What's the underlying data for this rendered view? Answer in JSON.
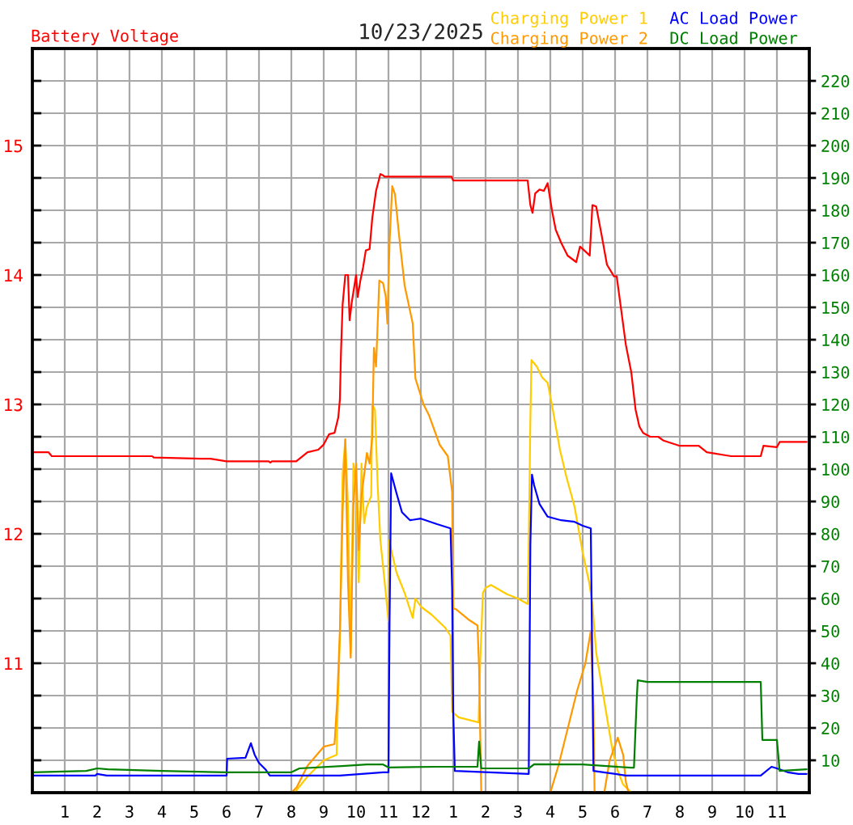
{
  "chart_data": {
    "type": "line",
    "title": "10/23/2025",
    "ylabel": "Battery Voltage",
    "xlim": [
      "2025-10-23T00:00",
      "2025-10-24T00:00"
    ],
    "xticks": [
      {
        "value": "2025-10-23T01:00",
        "label": "1"
      },
      {
        "value": "2025-10-23T02:00",
        "label": "2"
      },
      {
        "value": "2025-10-23T03:00",
        "label": "3"
      },
      {
        "value": "2025-10-23T04:00",
        "label": "4"
      },
      {
        "value": "2025-10-23T05:00",
        "label": "5"
      },
      {
        "value": "2025-10-23T06:00",
        "label": "6"
      },
      {
        "value": "2025-10-23T07:00",
        "label": "7"
      },
      {
        "value": "2025-10-23T08:00",
        "label": "8"
      },
      {
        "value": "2025-10-23T09:00",
        "label": "9"
      },
      {
        "value": "2025-10-23T10:00",
        "label": "10"
      },
      {
        "value": "2025-10-23T11:00",
        "label": "11"
      },
      {
        "value": "2025-10-23T12:00",
        "label": "12"
      },
      {
        "value": "2025-10-23T13:00",
        "label": "1"
      },
      {
        "value": "2025-10-23T14:00",
        "label": "2"
      },
      {
        "value": "2025-10-23T15:00",
        "label": "3"
      },
      {
        "value": "2025-10-23T16:00",
        "label": "4"
      },
      {
        "value": "2025-10-23T17:00",
        "label": "5"
      },
      {
        "value": "2025-10-23T18:00",
        "label": "6"
      },
      {
        "value": "2025-10-23T19:00",
        "label": "7"
      },
      {
        "value": "2025-10-23T20:00",
        "label": "8"
      },
      {
        "value": "2025-10-23T21:00",
        "label": "9"
      },
      {
        "value": "2025-10-23T22:00",
        "label": "10"
      },
      {
        "value": "2025-10-23T23:00",
        "label": "11"
      }
    ],
    "ylim": [
      10,
      15.75
    ],
    "yticks": [
      {
        "value": 10.25,
        "label": null
      },
      {
        "value": 10.5,
        "label": null
      },
      {
        "value": 10.75,
        "label": null
      },
      11,
      {
        "value": 11.25,
        "label": null
      },
      {
        "value": 11.5,
        "label": null
      },
      {
        "value": 11.75,
        "label": null
      },
      12,
      {
        "value": 12.25,
        "label": null
      },
      {
        "value": 12.5,
        "label": null
      },
      {
        "value": 12.75,
        "label": null
      },
      13,
      {
        "value": 13.25,
        "label": null
      },
      {
        "value": 13.5,
        "label": null
      },
      {
        "value": 13.75,
        "label": null
      },
      14,
      {
        "value": 14.25,
        "label": null
      },
      {
        "value": 14.5,
        "label": null
      },
      {
        "value": 14.75,
        "label": null
      },
      15,
      {
        "value": 15.25,
        "label": null
      },
      {
        "value": 15.5,
        "label": null
      }
    ],
    "y2lim": [
      0,
      230
    ],
    "y2ticks": [
      10,
      20,
      30,
      40,
      50,
      60,
      70,
      80,
      90,
      100,
      110,
      120,
      130,
      140,
      150,
      160,
      170,
      180,
      190,
      200,
      210,
      220
    ],
    "grid": true,
    "legend": "top right",
    "series": [
      {
        "color": "#ff0000",
        "axis": "y",
        "x": [
          "2025-10-23T00:00",
          "2025-10-23T00:30",
          "2025-10-23T00:36",
          "2025-10-23T03:42",
          "2025-10-23T03:45",
          "2025-10-23T05:12",
          "2025-10-23T05:30",
          "2025-10-23T06:00",
          "2025-10-23T07:18",
          "2025-10-23T07:21",
          "2025-10-23T07:24",
          "2025-10-23T08:09",
          "2025-10-23T08:30",
          "2025-10-23T08:50",
          "2025-10-23T09:00",
          "2025-10-23T09:10",
          "2025-10-23T09:20",
          "2025-10-23T09:27",
          "2025-10-23T09:30",
          "2025-10-23T09:32",
          "2025-10-23T09:35",
          "2025-10-23T09:40",
          "2025-10-23T09:45",
          "2025-10-23T09:48",
          "2025-10-23T09:52",
          "2025-10-23T09:57",
          "2025-10-23T10:00",
          "2025-10-23T10:03",
          "2025-10-23T10:08",
          "2025-10-23T10:13",
          "2025-10-23T10:18",
          "2025-10-23T10:25",
          "2025-10-23T10:30",
          "2025-10-23T10:37",
          "2025-10-23T10:45",
          "2025-10-23T10:50",
          "2025-10-23T10:53",
          "2025-10-23T12:57",
          "2025-10-23T13:00",
          "2025-10-23T15:18",
          "2025-10-23T15:23",
          "2025-10-23T15:27",
          "2025-10-23T15:32",
          "2025-10-23T15:40",
          "2025-10-23T15:48",
          "2025-10-23T15:55",
          "2025-10-23T16:03",
          "2025-10-23T16:10",
          "2025-10-23T16:20",
          "2025-10-23T16:32",
          "2025-10-23T16:48",
          "2025-10-23T16:55",
          "2025-10-23T17:03",
          "2025-10-23T17:13",
          "2025-10-23T17:18",
          "2025-10-23T17:25",
          "2025-10-23T17:35",
          "2025-10-23T17:45",
          "2025-10-23T17:58",
          "2025-10-23T18:03",
          "2025-10-23T18:12",
          "2025-10-23T18:20",
          "2025-10-23T18:30",
          "2025-10-23T18:38",
          "2025-10-23T18:45",
          "2025-10-23T18:52",
          "2025-10-23T19:05",
          "2025-10-23T19:20",
          "2025-10-23T19:30",
          "2025-10-23T20:00",
          "2025-10-23T20:35",
          "2025-10-23T20:50",
          "2025-10-23T21:35",
          "2025-10-23T22:30",
          "2025-10-23T22:35",
          "2025-10-23T23:00",
          "2025-10-23T23:05",
          "2025-10-23T23:55"
        ],
        "values": [
          12.63,
          12.63,
          12.6,
          12.6,
          12.59,
          12.58,
          12.58,
          12.56,
          12.56,
          12.55,
          12.56,
          12.56,
          12.63,
          12.65,
          12.69,
          12.77,
          12.78,
          12.9,
          13.04,
          13.4,
          13.77,
          14.0,
          14.0,
          13.65,
          13.79,
          13.92,
          14.0,
          13.83,
          13.96,
          14.06,
          14.19,
          14.2,
          14.44,
          14.65,
          14.78,
          14.77,
          14.76,
          14.76,
          14.73,
          14.73,
          14.54,
          14.48,
          14.63,
          14.66,
          14.65,
          14.71,
          14.5,
          14.35,
          14.25,
          14.15,
          14.1,
          14.22,
          14.19,
          14.15,
          14.54,
          14.53,
          14.31,
          14.08,
          13.99,
          13.99,
          13.71,
          13.46,
          13.25,
          12.96,
          12.83,
          12.78,
          12.75,
          12.75,
          12.72,
          12.68,
          12.68,
          12.63,
          12.6,
          12.6,
          12.68,
          12.67,
          12.71,
          12.71
        ]
      },
      {
        "name": "Charging Power 1",
        "color": "#ffcc00",
        "axis": "y2",
        "x": [
          "2025-10-23T00:00",
          "2025-10-23T08:06",
          "2025-10-23T08:30",
          "2025-10-23T09:00",
          "2025-10-23T09:24",
          "2025-10-23T09:25",
          "2025-10-23T09:30",
          "2025-10-23T09:35",
          "2025-10-23T09:40",
          "2025-10-23T09:45",
          "2025-10-23T09:50",
          "2025-10-23T09:55",
          "2025-10-23T10:00",
          "2025-10-23T10:05",
          "2025-10-23T10:10",
          "2025-10-23T10:15",
          "2025-10-23T10:20",
          "2025-10-23T10:28",
          "2025-10-23T10:30",
          "2025-10-23T10:35",
          "2025-10-23T10:40",
          "2025-10-23T10:45",
          "2025-10-23T10:55",
          "2025-10-23T11:00",
          "2025-10-23T11:01",
          "2025-10-23T11:15",
          "2025-10-23T11:30",
          "2025-10-23T11:45",
          "2025-10-23T11:50",
          "2025-10-23T12:00",
          "2025-10-23T12:20",
          "2025-10-23T12:45",
          "2025-10-23T12:55",
          "2025-10-23T12:58",
          "2025-10-23T13:10",
          "2025-10-23T13:47",
          "2025-10-23T13:50",
          "2025-10-23T13:55",
          "2025-10-23T14:00",
          "2025-10-23T14:10",
          "2025-10-23T14:40",
          "2025-10-23T15:00",
          "2025-10-23T15:18",
          "2025-10-23T15:20",
          "2025-10-23T15:23",
          "2025-10-23T15:25",
          "2025-10-23T15:35",
          "2025-10-23T15:45",
          "2025-10-23T15:55",
          "2025-10-23T16:02",
          "2025-10-23T16:10",
          "2025-10-23T16:18",
          "2025-10-23T16:30",
          "2025-10-23T16:45",
          "2025-10-23T17:00",
          "2025-10-23T17:12",
          "2025-10-23T17:18",
          "2025-10-23T17:25",
          "2025-10-23T17:35",
          "2025-10-23T17:45",
          "2025-10-23T17:55",
          "2025-10-23T18:05",
          "2025-10-23T18:15",
          "2025-10-23T18:30",
          "2025-10-24T00:00"
        ],
        "values": [
          0,
          0,
          5,
          10,
          11.7,
          20,
          48.3,
          98.3,
          109.2,
          88.3,
          43.3,
          101.7,
          95,
          65,
          101.7,
          83.3,
          88.3,
          91.7,
          120,
          118.3,
          95,
          78,
          61.7,
          53,
          78,
          68,
          61.7,
          54,
          60,
          57.5,
          55,
          51,
          48.5,
          25,
          23.3,
          21.7,
          40,
          61.7,
          63.3,
          64.2,
          61.3,
          60,
          58.3,
          76.7,
          115,
          133.7,
          131.7,
          128.3,
          126.7,
          120.8,
          113.3,
          105.8,
          97.5,
          88.3,
          74.2,
          65,
          58.3,
          43.3,
          33.3,
          23.3,
          13.3,
          6.7,
          2.5,
          0,
          0
        ]
      },
      {
        "name": "Charging Power 2",
        "color": "#ff9900",
        "axis": "y2",
        "x": [
          "2025-10-23T00:00",
          "2025-10-23T08:00",
          "2025-10-23T08:10",
          "2025-10-23T08:30",
          "2025-10-23T09:00",
          "2025-10-23T09:20",
          "2025-10-23T09:25",
          "2025-10-23T09:30",
          "2025-10-23T09:35",
          "2025-10-23T09:40",
          "2025-10-23T09:45",
          "2025-10-23T09:50",
          "2025-10-23T09:55",
          "2025-10-23T10:00",
          "2025-10-23T10:05",
          "2025-10-23T10:10",
          "2025-10-23T10:15",
          "2025-10-23T10:20",
          "2025-10-23T10:25",
          "2025-10-23T10:30",
          "2025-10-23T10:33",
          "2025-10-23T10:37",
          "2025-10-23T10:43",
          "2025-10-23T10:50",
          "2025-10-23T10:55",
          "2025-10-23T10:58",
          "2025-10-23T11:02",
          "2025-10-23T11:07",
          "2025-10-23T11:12",
          "2025-10-23T11:20",
          "2025-10-23T11:30",
          "2025-10-23T11:45",
          "2025-10-23T11:50",
          "2025-10-23T12:05",
          "2025-10-23T12:15",
          "2025-10-23T12:35",
          "2025-10-23T12:50",
          "2025-10-23T12:58",
          "2025-10-23T13:00",
          "2025-10-23T13:05",
          "2025-10-23T13:30",
          "2025-10-23T13:45",
          "2025-10-23T13:48",
          "2025-10-23T13:52",
          "2025-10-23T16:00",
          "2025-10-23T16:15",
          "2025-10-23T16:30",
          "2025-10-23T16:50",
          "2025-10-23T17:05",
          "2025-10-23T17:15",
          "2025-10-23T17:20",
          "2025-10-23T17:22",
          "2025-10-23T17:40",
          "2025-10-23T17:50",
          "2025-10-23T18:05",
          "2025-10-23T18:15",
          "2025-10-23T18:20",
          "2025-10-23T18:25",
          "2025-10-24T00:00"
        ],
        "values": [
          0,
          0,
          1.7,
          8.3,
          14.2,
          15,
          28.3,
          50,
          86.7,
          109.2,
          65,
          41.7,
          88.3,
          101.7,
          75,
          91.7,
          98.3,
          105,
          101.7,
          110,
          137.5,
          131.7,
          158.3,
          157.5,
          153.3,
          145,
          170,
          187.5,
          185,
          171.7,
          156.7,
          145,
          128,
          120,
          116.7,
          107.5,
          104,
          93,
          57,
          56.7,
          53.3,
          51.7,
          38.3,
          0,
          0,
          8.3,
          18.3,
          31.7,
          40,
          50,
          26.7,
          0,
          0,
          10,
          17,
          11.7,
          3.3,
          0,
          0
        ]
      },
      {
        "name": "AC Load Power",
        "color": "#0000ff",
        "axis": "y2",
        "x": [
          "2025-10-23T00:00",
          "2025-10-23T01:57",
          "2025-10-23T02:00",
          "2025-10-23T02:18",
          "2025-10-23T06:00",
          "2025-10-23T06:01",
          "2025-10-23T06:35",
          "2025-10-23T06:45",
          "2025-10-23T06:52",
          "2025-10-23T07:00",
          "2025-10-23T07:12",
          "2025-10-23T07:20",
          "2025-10-23T09:30",
          "2025-10-23T10:50",
          "2025-10-23T11:00",
          "2025-10-23T11:02",
          "2025-10-23T11:05",
          "2025-10-23T11:15",
          "2025-10-23T11:25",
          "2025-10-23T11:40",
          "2025-10-23T12:00",
          "2025-10-23T12:30",
          "2025-10-23T12:55",
          "2025-10-23T12:58",
          "2025-10-23T13:00",
          "2025-10-23T13:03",
          "2025-10-23T15:20",
          "2025-10-23T15:23",
          "2025-10-23T15:26",
          "2025-10-23T15:30",
          "2025-10-23T15:40",
          "2025-10-23T15:55",
          "2025-10-23T16:20",
          "2025-10-23T16:45",
          "2025-10-23T17:00",
          "2025-10-23T17:15",
          "2025-10-23T17:20",
          "2025-10-23T18:20",
          "2025-10-23T22:30",
          "2025-10-23T22:50",
          "2025-10-23T23:00",
          "2025-10-23T23:20",
          "2025-10-23T23:40",
          "2025-10-23T23:55"
        ],
        "values": [
          5.3,
          5.3,
          5.8,
          5.3,
          5.3,
          10.5,
          10.8,
          15.3,
          11.7,
          9.2,
          7.2,
          5.3,
          5.3,
          6.3,
          6.3,
          52.5,
          98.7,
          92.5,
          86.7,
          84.2,
          84.7,
          83,
          81.7,
          63,
          25,
          6.7,
          5.8,
          76.7,
          98.3,
          95,
          89.2,
          85.3,
          84.2,
          83.7,
          82.5,
          81.7,
          6.7,
          5.3,
          5.3,
          8,
          7.5,
          6.3,
          5.8,
          5.8
        ]
      },
      {
        "name": "DC Load Power",
        "color": "#008000",
        "axis": "y2",
        "x": [
          "2025-10-23T00:00",
          "2025-10-23T01:40",
          "2025-10-23T02:00",
          "2025-10-23T02:20",
          "2025-10-23T04:00",
          "2025-10-23T06:00",
          "2025-10-23T08:00",
          "2025-10-23T08:15",
          "2025-10-23T09:40",
          "2025-10-23T10:20",
          "2025-10-23T10:50",
          "2025-10-23T11:00",
          "2025-10-23T12:30",
          "2025-10-23T13:45",
          "2025-10-23T13:48",
          "2025-10-23T13:52",
          "2025-10-23T15:20",
          "2025-10-23T15:30",
          "2025-10-23T17:00",
          "2025-10-23T18:30",
          "2025-10-23T18:35",
          "2025-10-23T18:40",
          "2025-10-23T18:42",
          "2025-10-23T19:00",
          "2025-10-23T22:30",
          "2025-10-23T22:33",
          "2025-10-23T23:00",
          "2025-10-23T23:05",
          "2025-10-23T23:55"
        ],
        "values": [
          6.3,
          6.7,
          7.5,
          7.2,
          6.7,
          6.3,
          6.3,
          7.5,
          8.3,
          8.7,
          8.7,
          7.8,
          8,
          8,
          15.8,
          7.5,
          7.5,
          8.8,
          8.7,
          7.7,
          7.7,
          28.3,
          34.7,
          34.2,
          34.2,
          16.3,
          16.3,
          6.7,
          7.2
        ]
      }
    ]
  }
}
